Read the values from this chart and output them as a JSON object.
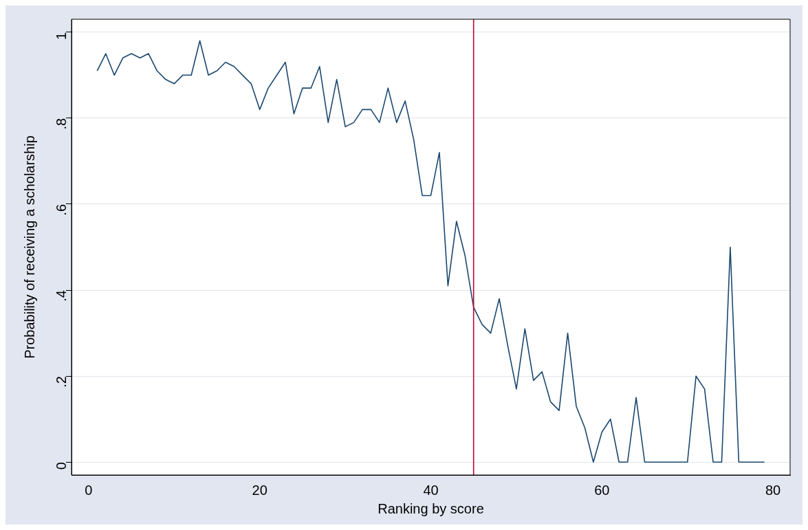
{
  "chart_data": {
    "type": "line",
    "xlabel": "Ranking by score",
    "ylabel": "Probability of receiving a scholarship",
    "x": [
      1,
      2,
      3,
      4,
      5,
      6,
      7,
      8,
      9,
      10,
      11,
      12,
      13,
      14,
      15,
      16,
      17,
      18,
      19,
      20,
      21,
      22,
      23,
      24,
      25,
      26,
      27,
      28,
      29,
      30,
      31,
      32,
      33,
      34,
      35,
      36,
      37,
      38,
      39,
      40,
      41,
      42,
      43,
      44,
      45,
      46,
      47,
      48,
      49,
      50,
      51,
      52,
      53,
      54,
      55,
      56,
      57,
      58,
      59,
      60,
      61,
      62,
      63,
      64,
      65,
      66,
      67,
      68,
      69,
      70,
      71,
      72,
      73,
      74,
      75,
      76,
      77,
      78,
      79
    ],
    "series": [
      {
        "color": "#1a476f",
        "values": [
          0.91,
          0.95,
          0.9,
          0.94,
          0.95,
          0.94,
          0.95,
          0.91,
          0.89,
          0.88,
          0.9,
          0.9,
          0.98,
          0.9,
          0.91,
          0.93,
          0.92,
          0.9,
          0.88,
          0.82,
          0.87,
          0.9,
          0.93,
          0.81,
          0.87,
          0.87,
          0.92,
          0.79,
          0.89,
          0.78,
          0.79,
          0.82,
          0.82,
          0.79,
          0.87,
          0.79,
          0.84,
          0.75,
          0.62,
          0.62,
          0.72,
          0.41,
          0.56,
          0.48,
          0.36,
          0.32,
          0.3,
          0.38,
          0.27,
          0.17,
          0.31,
          0.19,
          0.21,
          0.14,
          0.12,
          0.3,
          0.13,
          0.08,
          0,
          0.07,
          0.1,
          0,
          0,
          0.15,
          0,
          0,
          0,
          0,
          0,
          0,
          0.2,
          0.17,
          0,
          0,
          0.5,
          0,
          0,
          0,
          0
        ]
      }
    ],
    "xlim": [
      -2,
      82
    ],
    "xticks": [
      0,
      20,
      40,
      60,
      80
    ],
    "ylim": [
      -0.03,
      1.03
    ],
    "yticks": [
      0,
      {
        "value": 0.2,
        "label": ".2"
      },
      {
        "value": 0.4,
        "label": ".4"
      },
      {
        "value": 0.6,
        "label": ".6"
      },
      {
        "value": 0.8,
        "label": ".8"
      },
      1
    ],
    "grid": "y",
    "legend": false,
    "marker": "none",
    "line_style": "solid",
    "ref_lines": [
      {
        "axis": "x",
        "value": 45,
        "color": "#c10534"
      }
    ]
  }
}
